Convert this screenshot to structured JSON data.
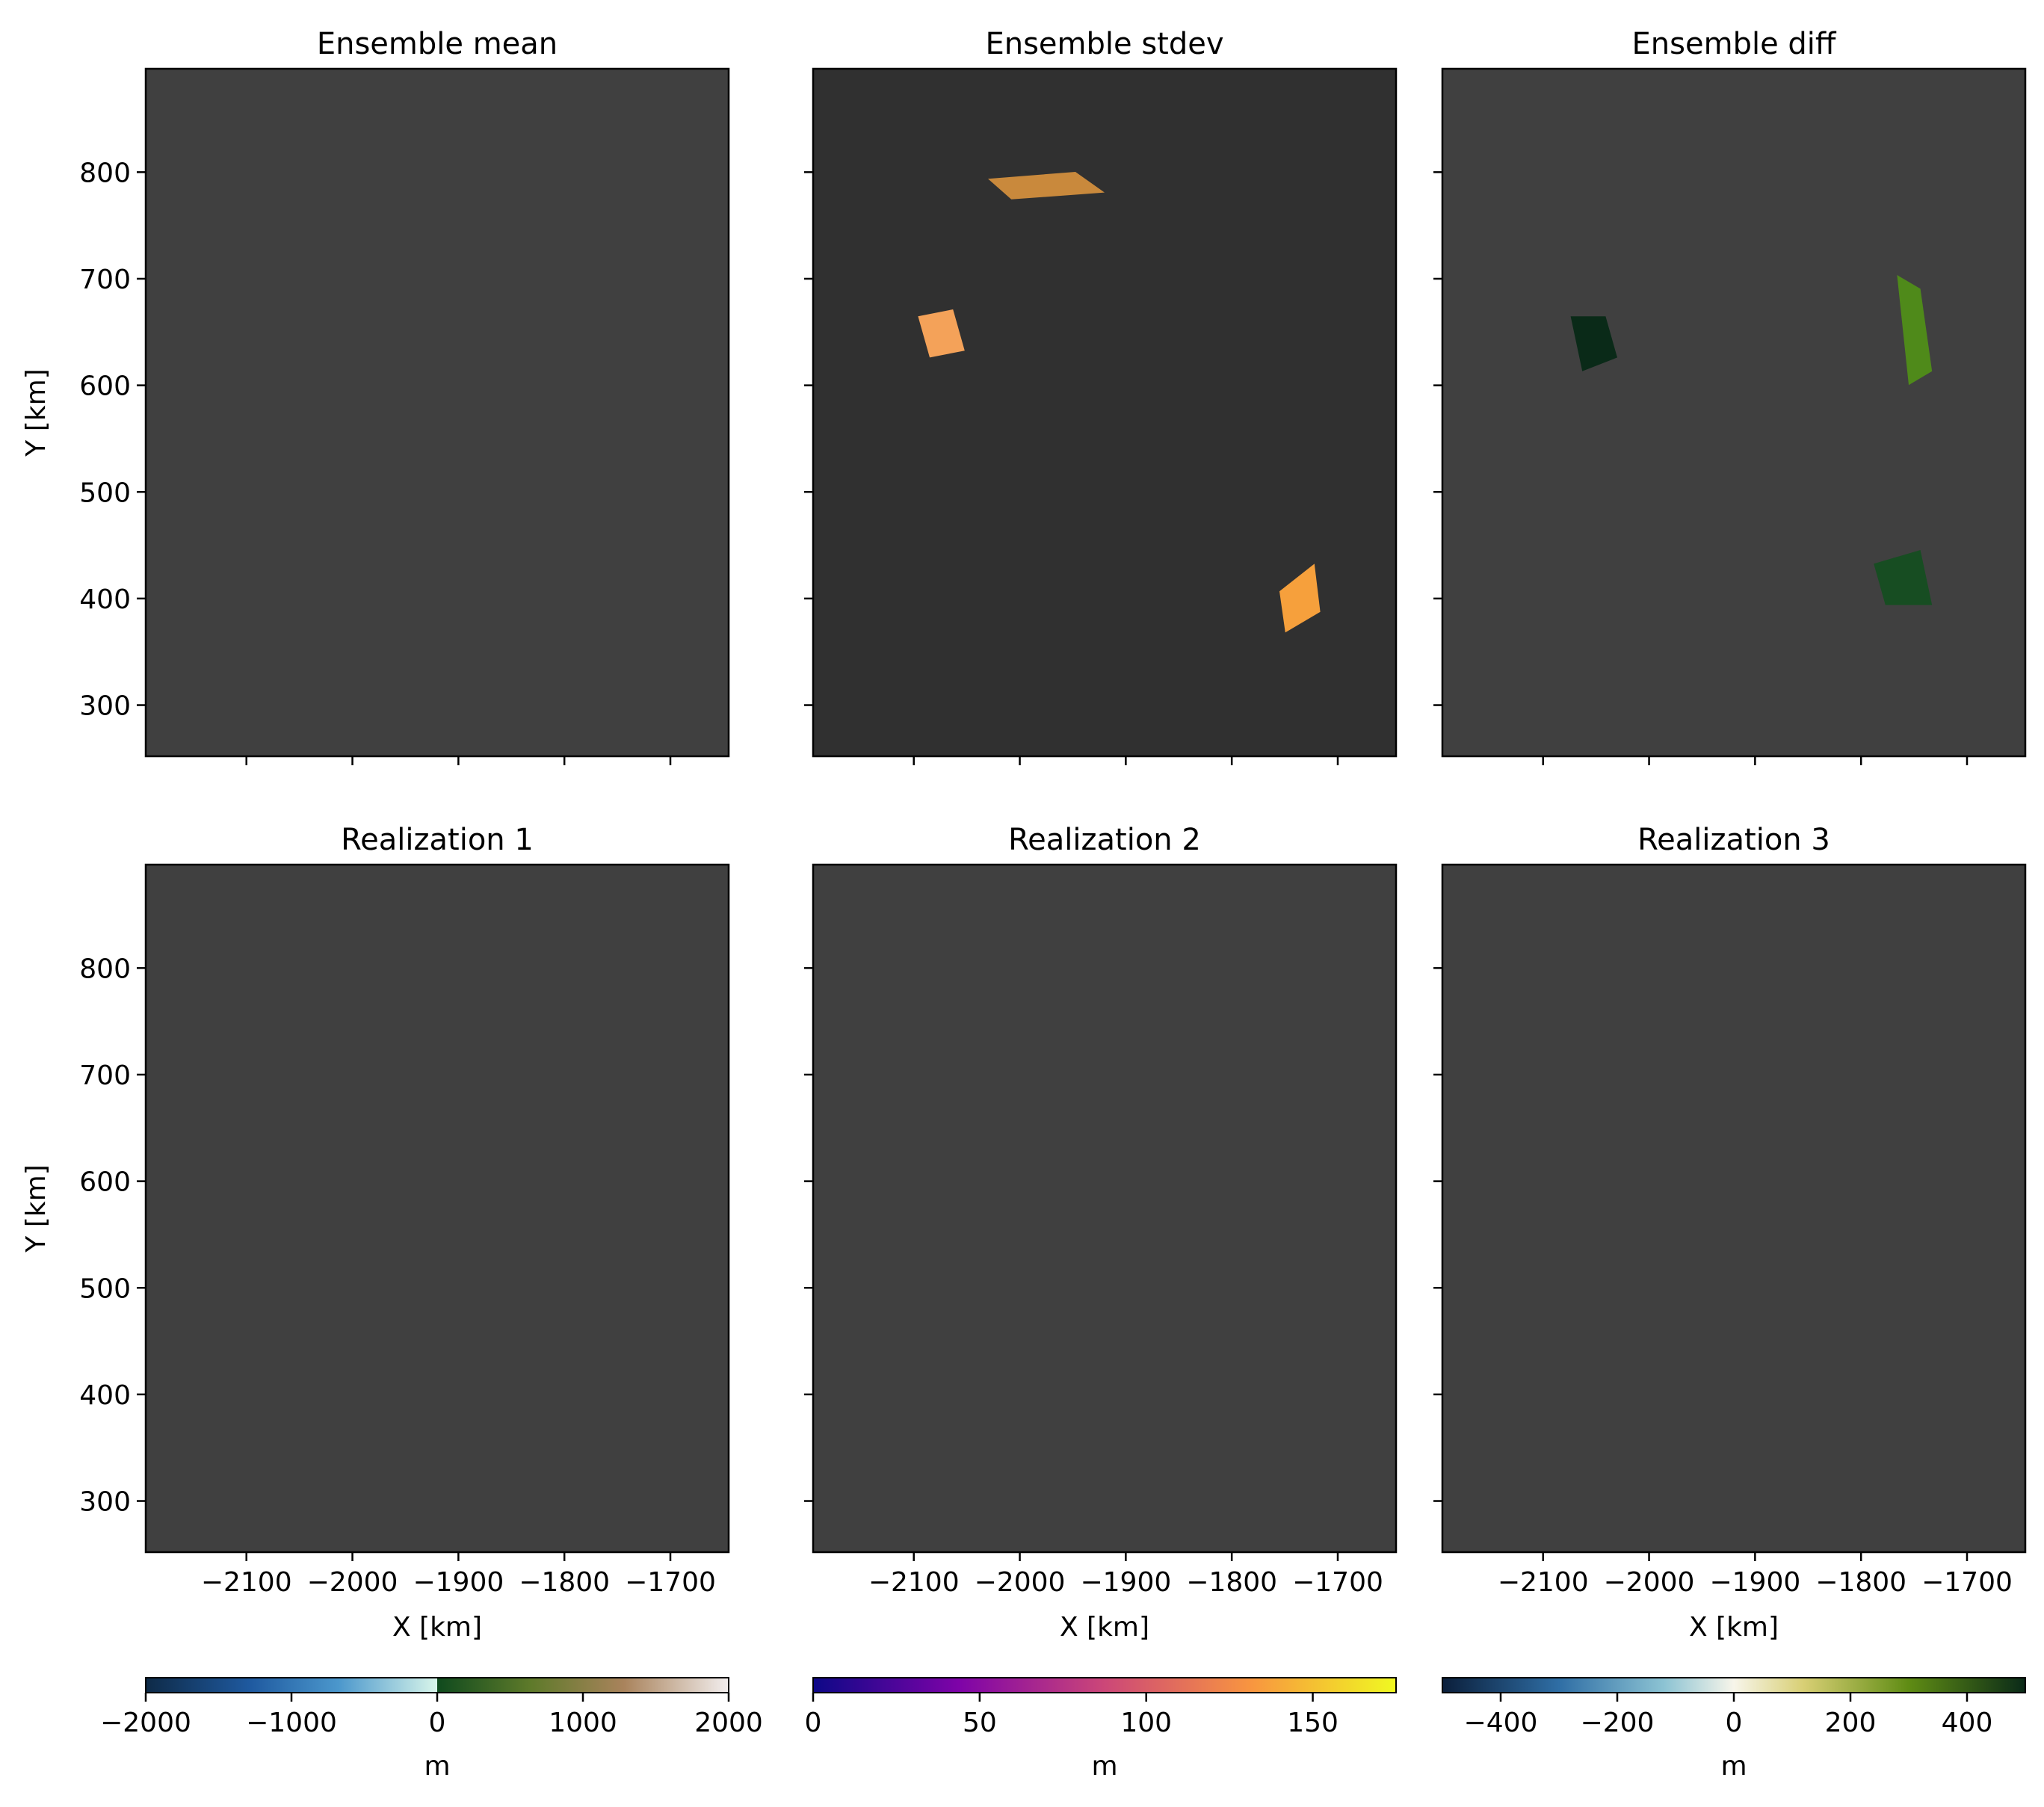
{
  "chart_data": {
    "type": "heatmap",
    "xlabel": "X [km]",
    "ylabel": "Y [km]",
    "xlim": [
      -2195,
      -1645
    ],
    "ylim": [
      252,
      897
    ],
    "xticks": [
      -2100,
      -2000,
      -1900,
      -1800,
      -1700
    ],
    "yticks": [
      300,
      400,
      500,
      600,
      700,
      800
    ],
    "xtick_labels": [
      "−2100",
      "−2000",
      "−1900",
      "−1800",
      "−1700"
    ],
    "ytick_labels": [
      "300",
      "400",
      "500",
      "600",
      "700",
      "800"
    ],
    "panels": [
      {
        "title": "Ensemble mean",
        "kind": "topo"
      },
      {
        "title": "Ensemble stdev",
        "kind": "stdev"
      },
      {
        "title": "Ensemble diff",
        "kind": "diff"
      },
      {
        "title": "Realization 1",
        "kind": "topo"
      },
      {
        "title": "Realization 2",
        "kind": "topo"
      },
      {
        "title": "Realization 3",
        "kind": "topo"
      }
    ],
    "colorbars": [
      {
        "label": "m",
        "cmap": "topography",
        "range": [
          -2000,
          2000
        ],
        "ticks": [
          -2000,
          -1000,
          0,
          1000,
          2000
        ],
        "tick_labels": [
          "−2000",
          "−1000",
          "0",
          "1000",
          "2000"
        ]
      },
      {
        "label": "m",
        "cmap": "plasma",
        "range": [
          0,
          175
        ],
        "ticks": [
          0,
          50,
          100,
          150
        ],
        "tick_labels": [
          "0",
          "50",
          "100",
          "150"
        ]
      },
      {
        "label": "m",
        "cmap": "diverging",
        "range": [
          -500,
          500
        ],
        "ticks": [
          -400,
          -200,
          0,
          200,
          400
        ],
        "tick_labels": [
          "−400",
          "−200",
          "0",
          "200",
          "400"
        ]
      }
    ]
  },
  "colors": {
    "deep_blue": "#1f4e8c",
    "mid_blue": "#5b9fd0",
    "light_cyan": "#cdeee5",
    "land_green": "#0d4d22",
    "olive": "#6f7a2e",
    "brown": "#a4805a",
    "snow": "#efe8e6",
    "outline": "#404040"
  }
}
